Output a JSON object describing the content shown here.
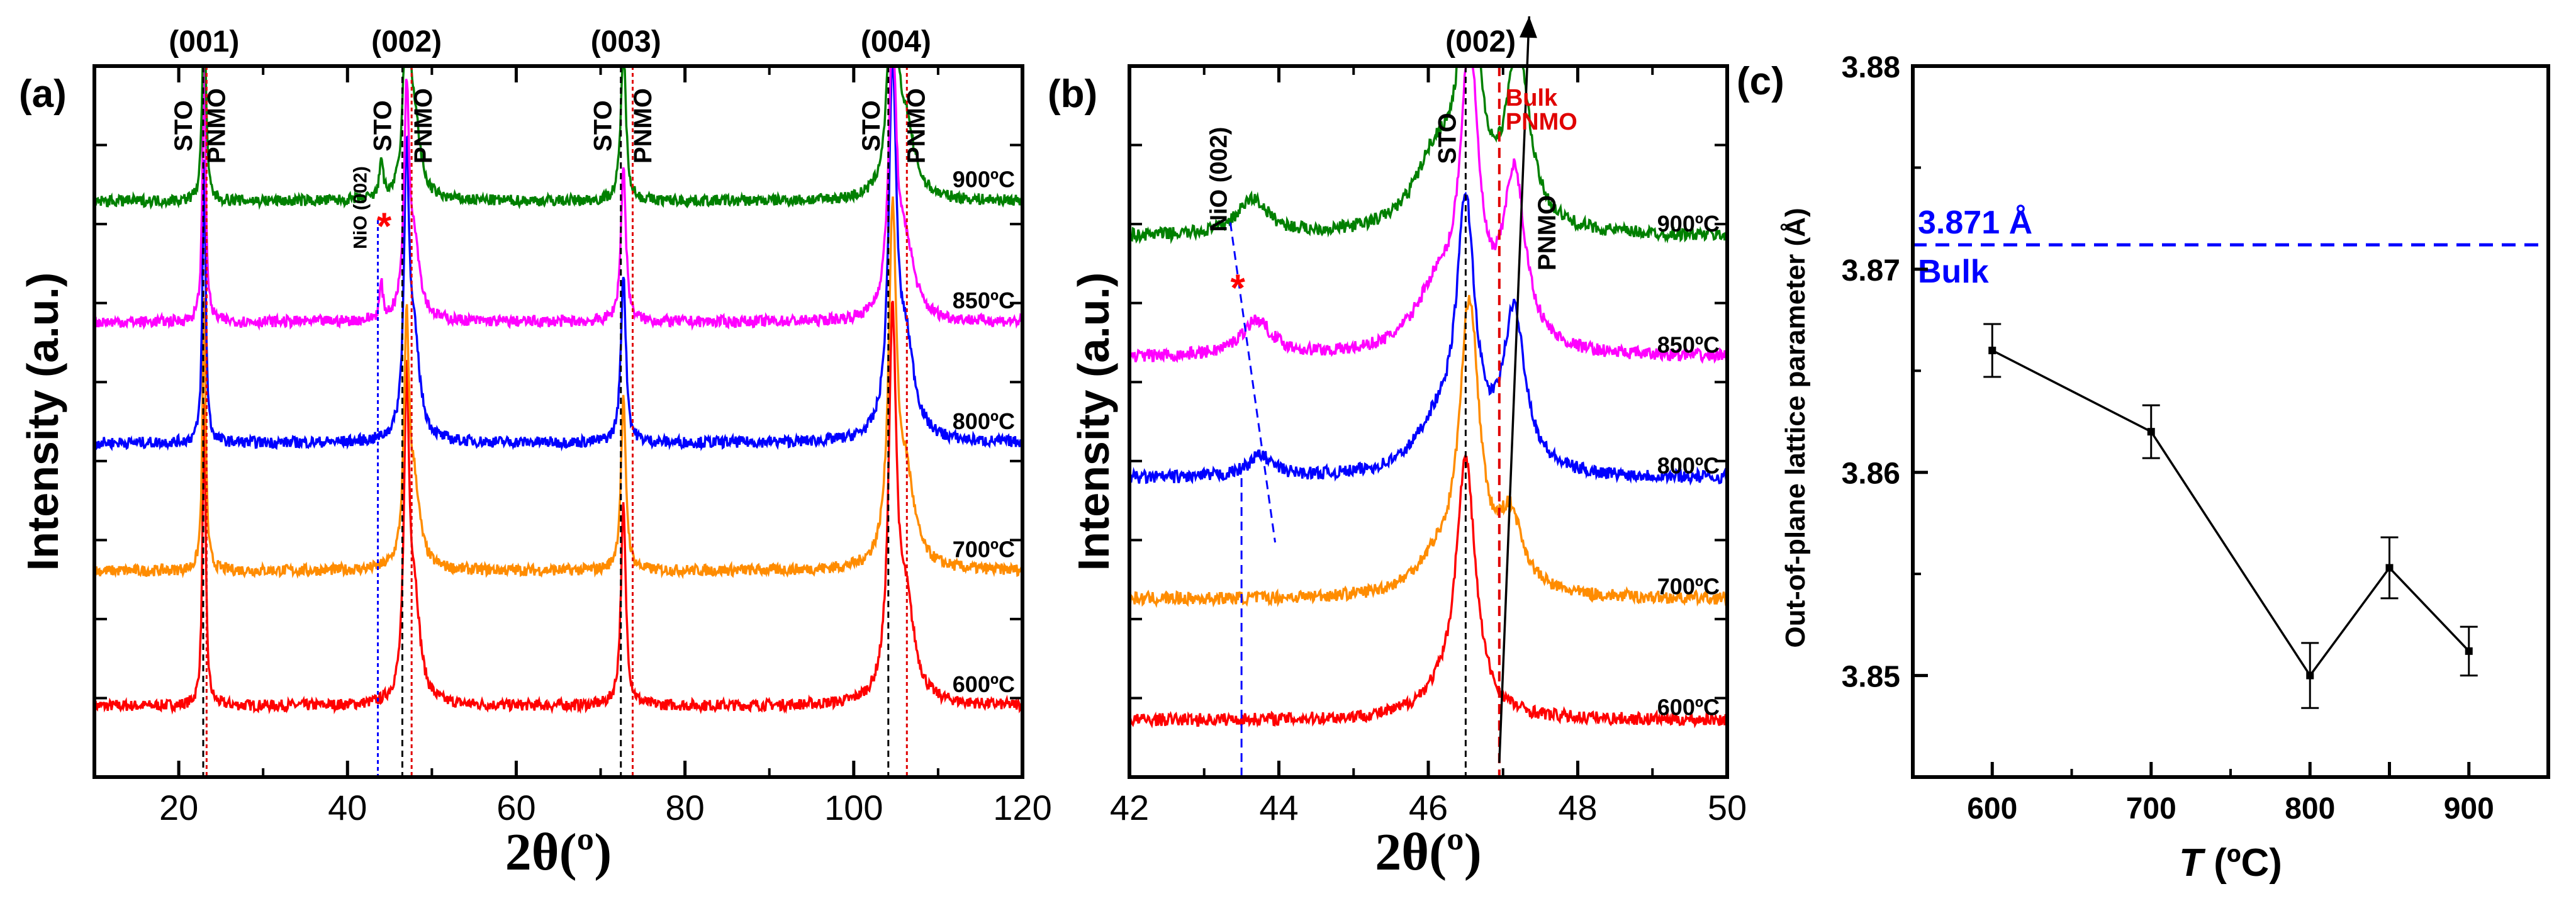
{
  "chart_data": [
    {
      "panel_label": "(a)",
      "type": "line",
      "xlabel": "2θ(º)",
      "ylabel": "Intensity (a.u.)",
      "xlim": [
        10,
        120
      ],
      "xticks": [
        20,
        40,
        60,
        80,
        100,
        120
      ],
      "reflections": [
        "(001)",
        "(002)",
        "(003)",
        "(004)"
      ],
      "reflection_positions": [
        23,
        47,
        73,
        105
      ],
      "peak_labels": [
        {
          "text": "STO",
          "x": 22.6
        },
        {
          "text": "PNMO",
          "x": 23.4
        },
        {
          "text": "STO",
          "x": 46.2
        },
        {
          "text": "PNMO",
          "x": 47.9
        },
        {
          "text": "STO",
          "x": 72.3
        },
        {
          "text": "PNMO",
          "x": 73.9
        },
        {
          "text": "STO",
          "x": 104.1
        },
        {
          "text": "PNMO",
          "x": 106.3
        }
      ],
      "nio_label": "NiO (002)",
      "impurity_marker": "*",
      "reference_lines": {
        "sto": [
          22.9,
          46.5,
          72.4,
          104.1
        ],
        "pnmo": [
          23.3,
          47.6,
          73.8,
          106.3
        ],
        "nio": 43.6
      },
      "series": [
        {
          "name": "600ºC",
          "color": "#ff0000",
          "baseline": 0.1,
          "peaks": [
            [
              23,
              0.42
            ],
            [
              47,
              0.42
            ],
            [
              72.7,
              0.28
            ],
            [
              104.6,
              0.52
            ]
          ]
        },
        {
          "name": "700ºC",
          "color": "#ff8c00",
          "baseline": 0.29,
          "peaks": [
            [
              23,
              0.38
            ],
            [
              47,
              0.32
            ],
            [
              72.7,
              0.24
            ],
            [
              104.6,
              0.48
            ]
          ]
        },
        {
          "name": "800ºC",
          "color": "#0000ff",
          "baseline": 0.47,
          "peaks": [
            [
              23,
              0.4
            ],
            [
              47,
              0.38
            ],
            [
              72.7,
              0.24
            ],
            [
              104.6,
              0.5
            ]
          ]
        },
        {
          "name": "850ºC",
          "color": "#ff00ff",
          "baseline": 0.64,
          "peaks": [
            [
              23,
              0.38
            ],
            [
              44.0,
              0.05
            ],
            [
              47,
              0.3
            ],
            [
              72.7,
              0.22
            ],
            [
              104.6,
              0.38
            ]
          ]
        },
        {
          "name": "900ºC",
          "color": "#008000",
          "baseline": 0.81,
          "peaks": [
            [
              23,
              0.34
            ],
            [
              44.0,
              0.06
            ],
            [
              47,
              0.32
            ],
            [
              72.7,
              0.22
            ],
            [
              104.6,
              0.38
            ]
          ]
        }
      ]
    },
    {
      "panel_label": "(b)",
      "type": "line",
      "xlabel": "2θ(º)",
      "ylabel": "Intensity (a.u.)",
      "xlim": [
        42,
        50
      ],
      "xticks": [
        42,
        44,
        46,
        48,
        50
      ],
      "reflection": "(002)",
      "bulk_label": [
        "Bulk",
        "PNMO"
      ],
      "sto_label": "STO",
      "pnmo_label": "PNMO",
      "nio_label": "NiO (002)",
      "impurity_marker": "*",
      "reference_lines": {
        "sto": 46.5,
        "bulk_pnmo": 46.95,
        "nio": 43.5
      },
      "arrow": {
        "from": [
          46.95,
          0.02
        ],
        "to": [
          47.35,
          1.07
        ]
      },
      "nio_shift_line": {
        "from": [
          43.35,
          0.78
        ],
        "to": [
          43.95,
          0.33
        ]
      },
      "series": [
        {
          "name": "600ºC",
          "color": "#ff0000",
          "baseline": 0.08,
          "peaks": [
            [
              46.5,
              0.36,
              0.16
            ]
          ]
        },
        {
          "name": "700ºC",
          "color": "#ff8c00",
          "baseline": 0.25,
          "peaks": [
            [
              46.55,
              0.4,
              0.16
            ],
            [
              47.1,
              0.1,
              0.2
            ]
          ]
        },
        {
          "name": "800ºC",
          "color": "#0000ff",
          "baseline": 0.42,
          "peaks": [
            [
              46.5,
              0.36,
              0.15
            ],
            [
              47.15,
              0.22,
              0.18
            ],
            [
              43.75,
              0.03,
              0.2
            ]
          ]
        },
        {
          "name": "850ºC",
          "color": "#ff00ff",
          "baseline": 0.59,
          "peaks": [
            [
              46.55,
              0.4,
              0.15
            ],
            [
              47.15,
              0.24,
              0.18
            ],
            [
              43.7,
              0.05,
              0.25
            ]
          ]
        },
        {
          "name": "900ºC",
          "color": "#008000",
          "baseline": 0.76,
          "peaks": [
            [
              46.55,
              0.37,
              0.15
            ],
            [
              47.2,
              0.25,
              0.18
            ],
            [
              43.65,
              0.05,
              0.25
            ]
          ]
        }
      ]
    },
    {
      "panel_label": "(c)",
      "type": "scatter",
      "xlabel_italic": "T",
      "xlabel_rest": " (ºC)",
      "ylabel": "Out-of-plane lattice parameter (Å)",
      "xlim": [
        550,
        950
      ],
      "ylim": [
        3.845,
        3.88
      ],
      "xticks": [
        600,
        700,
        800,
        850,
        900
      ],
      "xtick_labels": [
        "600",
        "700",
        "800",
        "",
        "900"
      ],
      "yticks": [
        3.85,
        3.86,
        3.87,
        3.88
      ],
      "ytick_labels": [
        "3.85",
        "3.86",
        "3.87",
        "3.88"
      ],
      "x": [
        600,
        700,
        800,
        850,
        900
      ],
      "y": [
        3.866,
        3.862,
        3.85,
        3.8553,
        3.8512
      ],
      "yerr": [
        0.0013,
        0.0013,
        0.0016,
        0.0015,
        0.0012
      ],
      "bulk_value": 3.8712,
      "bulk_value_label": "3.871 Å",
      "bulk_label": "Bulk",
      "colors": {
        "data": "#000000",
        "bulk": "#0000ff"
      }
    }
  ]
}
